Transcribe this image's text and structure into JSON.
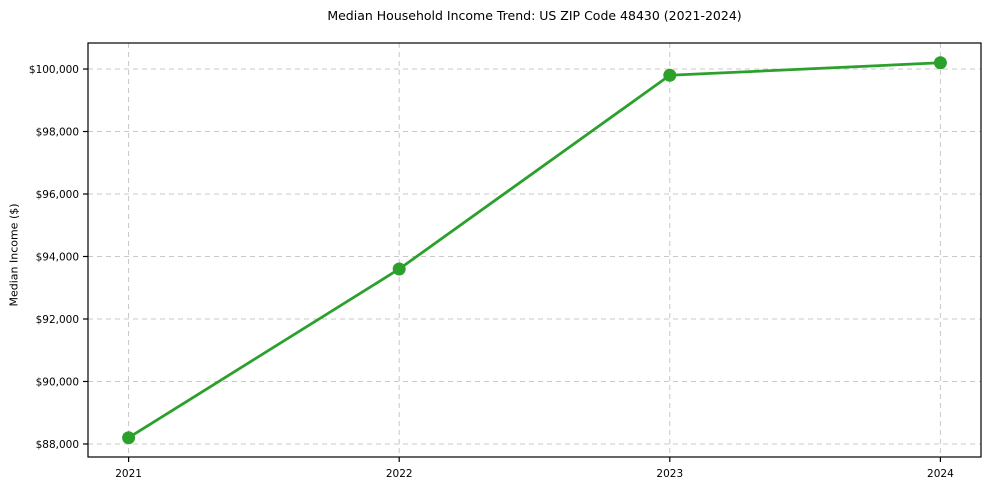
{
  "chart_data": {
    "type": "line",
    "title": "Median Household Income Trend: US ZIP Code 48430 (2021-2024)",
    "xlabel": "",
    "ylabel": "Median Income ($)",
    "x": [
      2021,
      2022,
      2023,
      2024
    ],
    "x_tick_labels": [
      "2021",
      "2022",
      "2023",
      "2024"
    ],
    "series": [
      {
        "name": "Median Household Income",
        "values": [
          88200,
          93600,
          99800,
          100200
        ]
      }
    ],
    "y_ticks": [
      88000,
      90000,
      92000,
      94000,
      96000,
      98000,
      100000
    ],
    "y_tick_labels": [
      "$88,000",
      "$90,000",
      "$92,000",
      "$94,000",
      "$96,000",
      "$98,000",
      "$100,000"
    ],
    "xlim": [
      2020.85,
      2024.15
    ],
    "ylim": [
      87583,
      100833
    ],
    "grid": true,
    "grid_style": "dashed",
    "legend_position": "none",
    "colors": {
      "line": "#2ca02c",
      "marker": "#2ca02c",
      "grid": "#c8c8c8",
      "axis": "#000000",
      "text": "#000000",
      "background": "#ffffff"
    }
  }
}
